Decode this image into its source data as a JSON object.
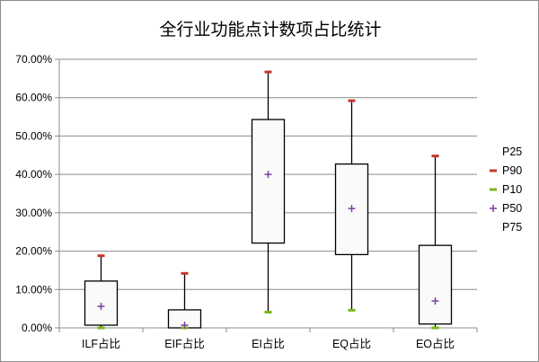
{
  "chart_data": {
    "type": "box",
    "title": "全行业功能点计数项占比统计",
    "xlabel": "",
    "ylabel": "",
    "ylim": [
      0,
      0.7
    ],
    "y_tick_labels": [
      "0.00%",
      "10.00%",
      "20.00%",
      "30.00%",
      "40.00%",
      "50.00%",
      "60.00%",
      "70.00%"
    ],
    "y_ticks": [
      0,
      0.1,
      0.2,
      0.3,
      0.4,
      0.5,
      0.6,
      0.7
    ],
    "grid": true,
    "legend_position": "right",
    "categories": [
      "ILF占比",
      "EIF占比",
      "EI占比",
      "EQ占比",
      "EO占比"
    ],
    "series": [
      {
        "name": "P25",
        "values": [
          0.007,
          0.0,
          0.221,
          0.191,
          0.01
        ]
      },
      {
        "name": "P90",
        "values": [
          0.188,
          0.142,
          0.667,
          0.592,
          0.448
        ]
      },
      {
        "name": "P10",
        "values": [
          0.0,
          0.0,
          0.041,
          0.046,
          0.0
        ]
      },
      {
        "name": "P50",
        "values": [
          0.056,
          0.007,
          0.4,
          0.311,
          0.07
        ]
      },
      {
        "name": "P75",
        "values": [
          0.122,
          0.047,
          0.543,
          0.427,
          0.215
        ]
      }
    ],
    "legend": [
      {
        "name": "P25",
        "marker": "none"
      },
      {
        "name": "P90",
        "marker": "dash",
        "color": "#c0392b"
      },
      {
        "name": "P10",
        "marker": "dash",
        "color": "#7cb518"
      },
      {
        "name": "P50",
        "marker": "plus",
        "color": "#7b3fa0"
      },
      {
        "name": "P75",
        "marker": "none"
      }
    ],
    "colors": {
      "p90": "#c0392b",
      "p10": "#7cb518",
      "p50": "#7b3fa0",
      "box_fill": "#fafafa",
      "box_stroke": "#000000",
      "grid": "#8c8c8c"
    }
  }
}
